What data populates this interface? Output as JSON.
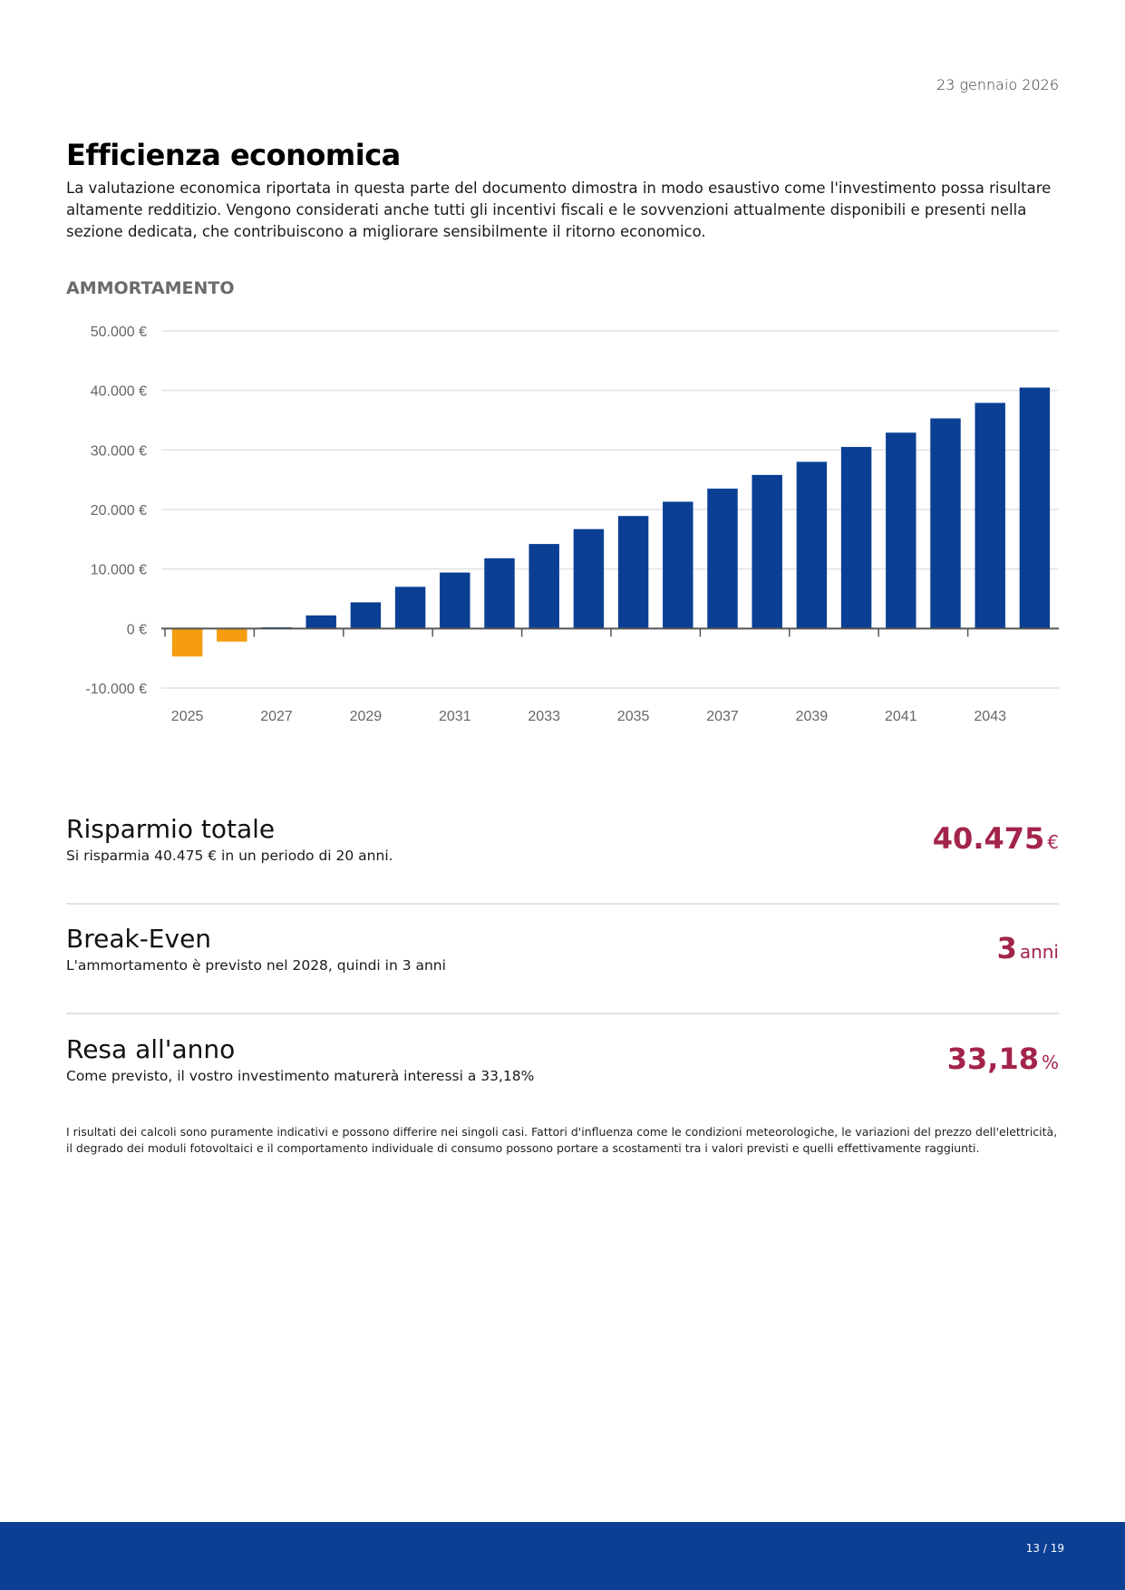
{
  "header": {
    "date": "23 gennaio 2026"
  },
  "page": {
    "title": "Efficienza economica",
    "intro": "La valutazione economica riportata in questa parte del documento dimostra in modo esaustivo come l'investimento possa risultare altamente redditizio. Vengono considerati anche tutti gli incentivi fiscali e le sovvenzioni attualmente disponibili e presenti nella sezione dedicata, che contribuiscono a migliorare sensibilmente il ritorno economico.",
    "section_label": "AMMORTAMENTO"
  },
  "chart_data": {
    "type": "bar",
    "title": "AMMORTAMENTO",
    "xlabel": "",
    "ylabel": "",
    "categories": [
      "2025",
      "2026",
      "2027",
      "2028",
      "2029",
      "2030",
      "2031",
      "2032",
      "2033",
      "2034",
      "2035",
      "2036",
      "2037",
      "2038",
      "2039",
      "2040",
      "2041",
      "2042",
      "2043",
      "2044"
    ],
    "values": [
      -4700,
      -2200,
      200,
      2200,
      4400,
      7000,
      9400,
      11800,
      14200,
      16700,
      18900,
      21300,
      23500,
      25800,
      28000,
      30500,
      32900,
      35300,
      37900,
      40475
    ],
    "x_tick_labels": [
      "2025",
      "2027",
      "2029",
      "2031",
      "2033",
      "2035",
      "2037",
      "2039",
      "2041",
      "2043"
    ],
    "y_ticks": [
      -10000,
      0,
      10000,
      20000,
      30000,
      40000,
      50000
    ],
    "y_tick_labels": [
      "-10.000 €",
      "0 €",
      "10.000 €",
      "20.000 €",
      "30.000 €",
      "40.000 €",
      "50.000 €"
    ],
    "ylim": [
      -10000,
      50000
    ],
    "grid": true,
    "colors": {
      "positive": "#0a3f94",
      "negative": "#f59c0f",
      "grid": "#e2e2e2",
      "axis": "#555555",
      "tick_text": "#666666"
    }
  },
  "metrics": [
    {
      "title": "Risparmio totale",
      "description": "Si risparmia 40.475 € in un periodo di 20 anni.",
      "value": "40.475",
      "unit": "€"
    },
    {
      "title": "Break-Even",
      "description": "L'ammortamento è previsto nel 2028, quindi in 3 anni",
      "value": "3",
      "unit": "anni"
    },
    {
      "title": "Resa all'anno",
      "description": "Come previsto, il vostro investimento maturerà interessi a 33,18%",
      "value": "33,18",
      "unit": "%"
    }
  ],
  "disclaimer": "I risultati dei calcoli sono puramente indicativi e possono differire nei singoli casi. Fattori d'influenza come le condizioni meteorologiche, le variazioni del prezzo dell'elettricità, il degrado dei moduli fotovoltaici e il comportamento individuale di consumo possono portare a scostamenti tra i valori previsti e quelli effettivamente raggiunti.",
  "footer": {
    "page_number": "13 / 19"
  },
  "colors": {
    "accent": "#a3244a",
    "brand": "#0a3f94"
  }
}
